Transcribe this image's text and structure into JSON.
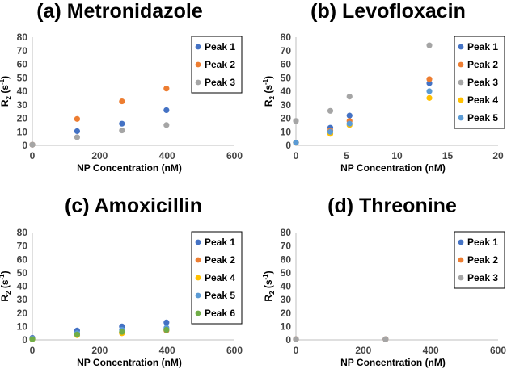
{
  "series_colors": {
    "Peak 1": "#4472C4",
    "Peak 2": "#ED7D31",
    "Peak 3": "#A5A5A5",
    "Peak 4": "#FFC000",
    "Peak 5": "#5B9BD5",
    "Peak 6": "#70AD47"
  },
  "chart_data": [
    {
      "type": "scatter",
      "title": "(a) Metronidazole",
      "xlabel": "NP Concentration (nM)",
      "ylabel": "R2 (s-1)",
      "xlim": [
        0,
        600
      ],
      "ylim": [
        0,
        80
      ],
      "xticks": [
        "0",
        "200",
        "400",
        "600"
      ],
      "yticks": [
        "0",
        "10",
        "20",
        "30",
        "40",
        "50",
        "60",
        "70",
        "80"
      ],
      "legend": "right",
      "series": [
        {
          "name": "Peak 1",
          "x": [
            0,
            133,
            266,
            398
          ],
          "y": [
            0.5,
            10.5,
            16,
            26
          ]
        },
        {
          "name": "Peak 2",
          "x": [
            0,
            133,
            266,
            398
          ],
          "y": [
            0.5,
            19.5,
            32.5,
            42
          ]
        },
        {
          "name": "Peak 3",
          "x": [
            0,
            133,
            266,
            398
          ],
          "y": [
            0.5,
            6,
            11,
            15
          ]
        }
      ]
    },
    {
      "type": "scatter",
      "title": "(b) Levofloxacin",
      "xlabel": "NP Concentration (nM)",
      "ylabel": "R2 (s-1)",
      "xlim": [
        0,
        20
      ],
      "ylim": [
        0,
        80
      ],
      "xticks": [
        "0",
        "5",
        "10",
        "15",
        "20"
      ],
      "yticks": [
        "0",
        "10",
        "20",
        "30",
        "40",
        "50",
        "60",
        "70",
        "80"
      ],
      "legend": "right",
      "series": [
        {
          "name": "Peak 1",
          "x": [
            0,
            3.4,
            5.3,
            13.2
          ],
          "y": [
            2,
            13,
            22,
            46
          ]
        },
        {
          "name": "Peak 2",
          "x": [
            0,
            3.4,
            5.3,
            13.2
          ],
          "y": [
            2,
            11,
            18,
            49
          ]
        },
        {
          "name": "Peak 3",
          "x": [
            0,
            3.4,
            5.3,
            13.2
          ],
          "y": [
            18,
            25.5,
            36,
            74
          ]
        },
        {
          "name": "Peak 4",
          "x": [
            0,
            3.4,
            5.3,
            13.2
          ],
          "y": [
            2,
            8.5,
            15,
            35
          ]
        },
        {
          "name": "Peak 5",
          "x": [
            0,
            3.4,
            5.3,
            13.2
          ],
          "y": [
            2,
            10,
            16,
            40
          ]
        }
      ]
    },
    {
      "type": "scatter",
      "title": "(c) Amoxicillin",
      "xlabel": "NP Concentration (nM)",
      "ylabel": "R2 (s-1)",
      "xlim": [
        0,
        600
      ],
      "ylim": [
        0,
        80
      ],
      "xticks": [
        "0",
        "200",
        "400",
        "600"
      ],
      "yticks": [
        "0",
        "10",
        "20",
        "30",
        "40",
        "50",
        "60",
        "70",
        "80"
      ],
      "legend": "right",
      "series": [
        {
          "name": "Peak 1",
          "x": [
            0,
            133,
            266,
            398
          ],
          "y": [
            1.5,
            7,
            10,
            13
          ]
        },
        {
          "name": "Peak 2",
          "x": [
            0,
            133,
            266,
            398
          ],
          "y": [
            1,
            4,
            5,
            7
          ]
        },
        {
          "name": "Peak 4",
          "x": [
            0,
            133,
            266,
            398
          ],
          "y": [
            0.5,
            3.5,
            5,
            8
          ]
        },
        {
          "name": "Peak 5",
          "x": [
            0,
            133,
            266,
            398
          ],
          "y": [
            1,
            5,
            7.5,
            9
          ]
        },
        {
          "name": "Peak 6",
          "x": [
            0,
            133,
            266,
            398
          ],
          "y": [
            0.5,
            4,
            6,
            7.5
          ]
        }
      ]
    },
    {
      "type": "scatter",
      "title": "(d) Threonine",
      "xlabel": "NP Concentration (nM)",
      "ylabel": "R2 (s-1)",
      "xlim": [
        0,
        600
      ],
      "ylim": [
        0,
        80
      ],
      "xticks": [
        "0",
        "200",
        "400",
        "600"
      ],
      "yticks": [
        "0",
        "10",
        "20",
        "30",
        "40",
        "50",
        "60",
        "70",
        "80"
      ],
      "legend": "right",
      "series": [
        {
          "name": "Peak 1",
          "x": [
            0,
            266
          ],
          "y": [
            0.5,
            0.5
          ]
        },
        {
          "name": "Peak 2",
          "x": [
            0,
            266
          ],
          "y": [
            0.5,
            0.5
          ]
        },
        {
          "name": "Peak 3",
          "x": [
            0,
            266
          ],
          "y": [
            0.5,
            0.5
          ]
        }
      ]
    }
  ]
}
